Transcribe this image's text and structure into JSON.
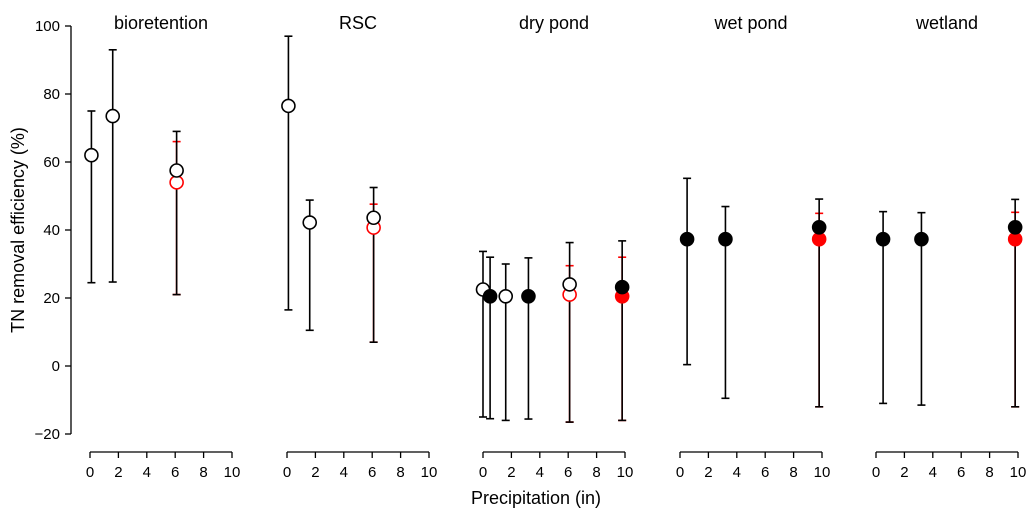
{
  "chart_data": {
    "type": "scatter",
    "ylabel": "TN removal efficiency (%)",
    "xlabel": "Precipitation (in)",
    "ylim": [
      -20,
      100
    ],
    "yticks": [
      "100",
      "80",
      "60",
      "40",
      "20",
      "0",
      "−20"
    ],
    "xlim": [
      0,
      10
    ],
    "xticks": [
      "0",
      "2",
      "4",
      "6",
      "8",
      "10"
    ],
    "colors": {
      "black": "#000000",
      "red": "#ff0000"
    },
    "panels": [
      {
        "title": "bioretention",
        "points": [
          {
            "x": 0.1,
            "y": 62,
            "lo": 24.5,
            "hi": 75,
            "fill": "open",
            "color": "black"
          },
          {
            "x": 1.6,
            "y": 73.5,
            "lo": 24.7,
            "hi": 93,
            "fill": "open",
            "color": "black"
          },
          {
            "x": 6.1,
            "y": 54,
            "lo": 21,
            "hi": 66,
            "fill": "open",
            "color": "red"
          },
          {
            "x": 6.1,
            "y": 57.5,
            "lo": 21,
            "hi": 69,
            "fill": "open",
            "color": "black"
          }
        ]
      },
      {
        "title": "RSC",
        "points": [
          {
            "x": 0.1,
            "y": 76.5,
            "lo": 16.5,
            "hi": 97,
            "fill": "open",
            "color": "black"
          },
          {
            "x": 1.6,
            "y": 42.2,
            "lo": 10.5,
            "hi": 48.8,
            "fill": "open",
            "color": "black"
          },
          {
            "x": 6.1,
            "y": 40.7,
            "lo": 7,
            "hi": 47.6,
            "fill": "open",
            "color": "red"
          },
          {
            "x": 6.1,
            "y": 43.6,
            "lo": 7,
            "hi": 52.5,
            "fill": "open",
            "color": "black"
          }
        ]
      },
      {
        "title": "dry pond",
        "points": [
          {
            "x": 0,
            "y": 22.5,
            "lo": -15,
            "hi": 33.7,
            "fill": "open",
            "color": "black"
          },
          {
            "x": 0.5,
            "y": 20.5,
            "lo": -15.5,
            "hi": 32,
            "fill": "filled",
            "color": "black"
          },
          {
            "x": 1.6,
            "y": 20.5,
            "lo": -16,
            "hi": 30,
            "fill": "open",
            "color": "black"
          },
          {
            "x": 3.2,
            "y": 20.5,
            "lo": -15.6,
            "hi": 31.8,
            "fill": "filled",
            "color": "black"
          },
          {
            "x": 6.1,
            "y": 21,
            "lo": -16.5,
            "hi": 29.5,
            "fill": "open",
            "color": "red"
          },
          {
            "x": 6.1,
            "y": 24,
            "lo": -16.5,
            "hi": 36.3,
            "fill": "open",
            "color": "black"
          },
          {
            "x": 9.8,
            "y": 20.5,
            "lo": -16,
            "hi": 32,
            "fill": "filled",
            "color": "red"
          },
          {
            "x": 9.8,
            "y": 23.2,
            "lo": -16,
            "hi": 36.8,
            "fill": "filled",
            "color": "black"
          }
        ]
      },
      {
        "title": "wet pond",
        "points": [
          {
            "x": 0.5,
            "y": 37.3,
            "lo": 0.4,
            "hi": 55.2,
            "fill": "filled",
            "color": "black"
          },
          {
            "x": 3.2,
            "y": 37.3,
            "lo": -9.5,
            "hi": 46.9,
            "fill": "filled",
            "color": "black"
          },
          {
            "x": 9.8,
            "y": 37.3,
            "lo": -12,
            "hi": 44.9,
            "fill": "filled",
            "color": "red"
          },
          {
            "x": 9.8,
            "y": 40.8,
            "lo": -12,
            "hi": 49.1,
            "fill": "filled",
            "color": "black"
          }
        ]
      },
      {
        "title": "wetland",
        "points": [
          {
            "x": 0.5,
            "y": 37.3,
            "lo": -11,
            "hi": 45.4,
            "fill": "filled",
            "color": "black"
          },
          {
            "x": 3.2,
            "y": 37.3,
            "lo": -11.5,
            "hi": 45.1,
            "fill": "filled",
            "color": "black"
          },
          {
            "x": 9.8,
            "y": 37.3,
            "lo": -12,
            "hi": 45.2,
            "fill": "filled",
            "color": "red"
          },
          {
            "x": 9.8,
            "y": 40.8,
            "lo": -12,
            "hi": 49,
            "fill": "filled",
            "color": "black"
          }
        ]
      }
    ]
  }
}
